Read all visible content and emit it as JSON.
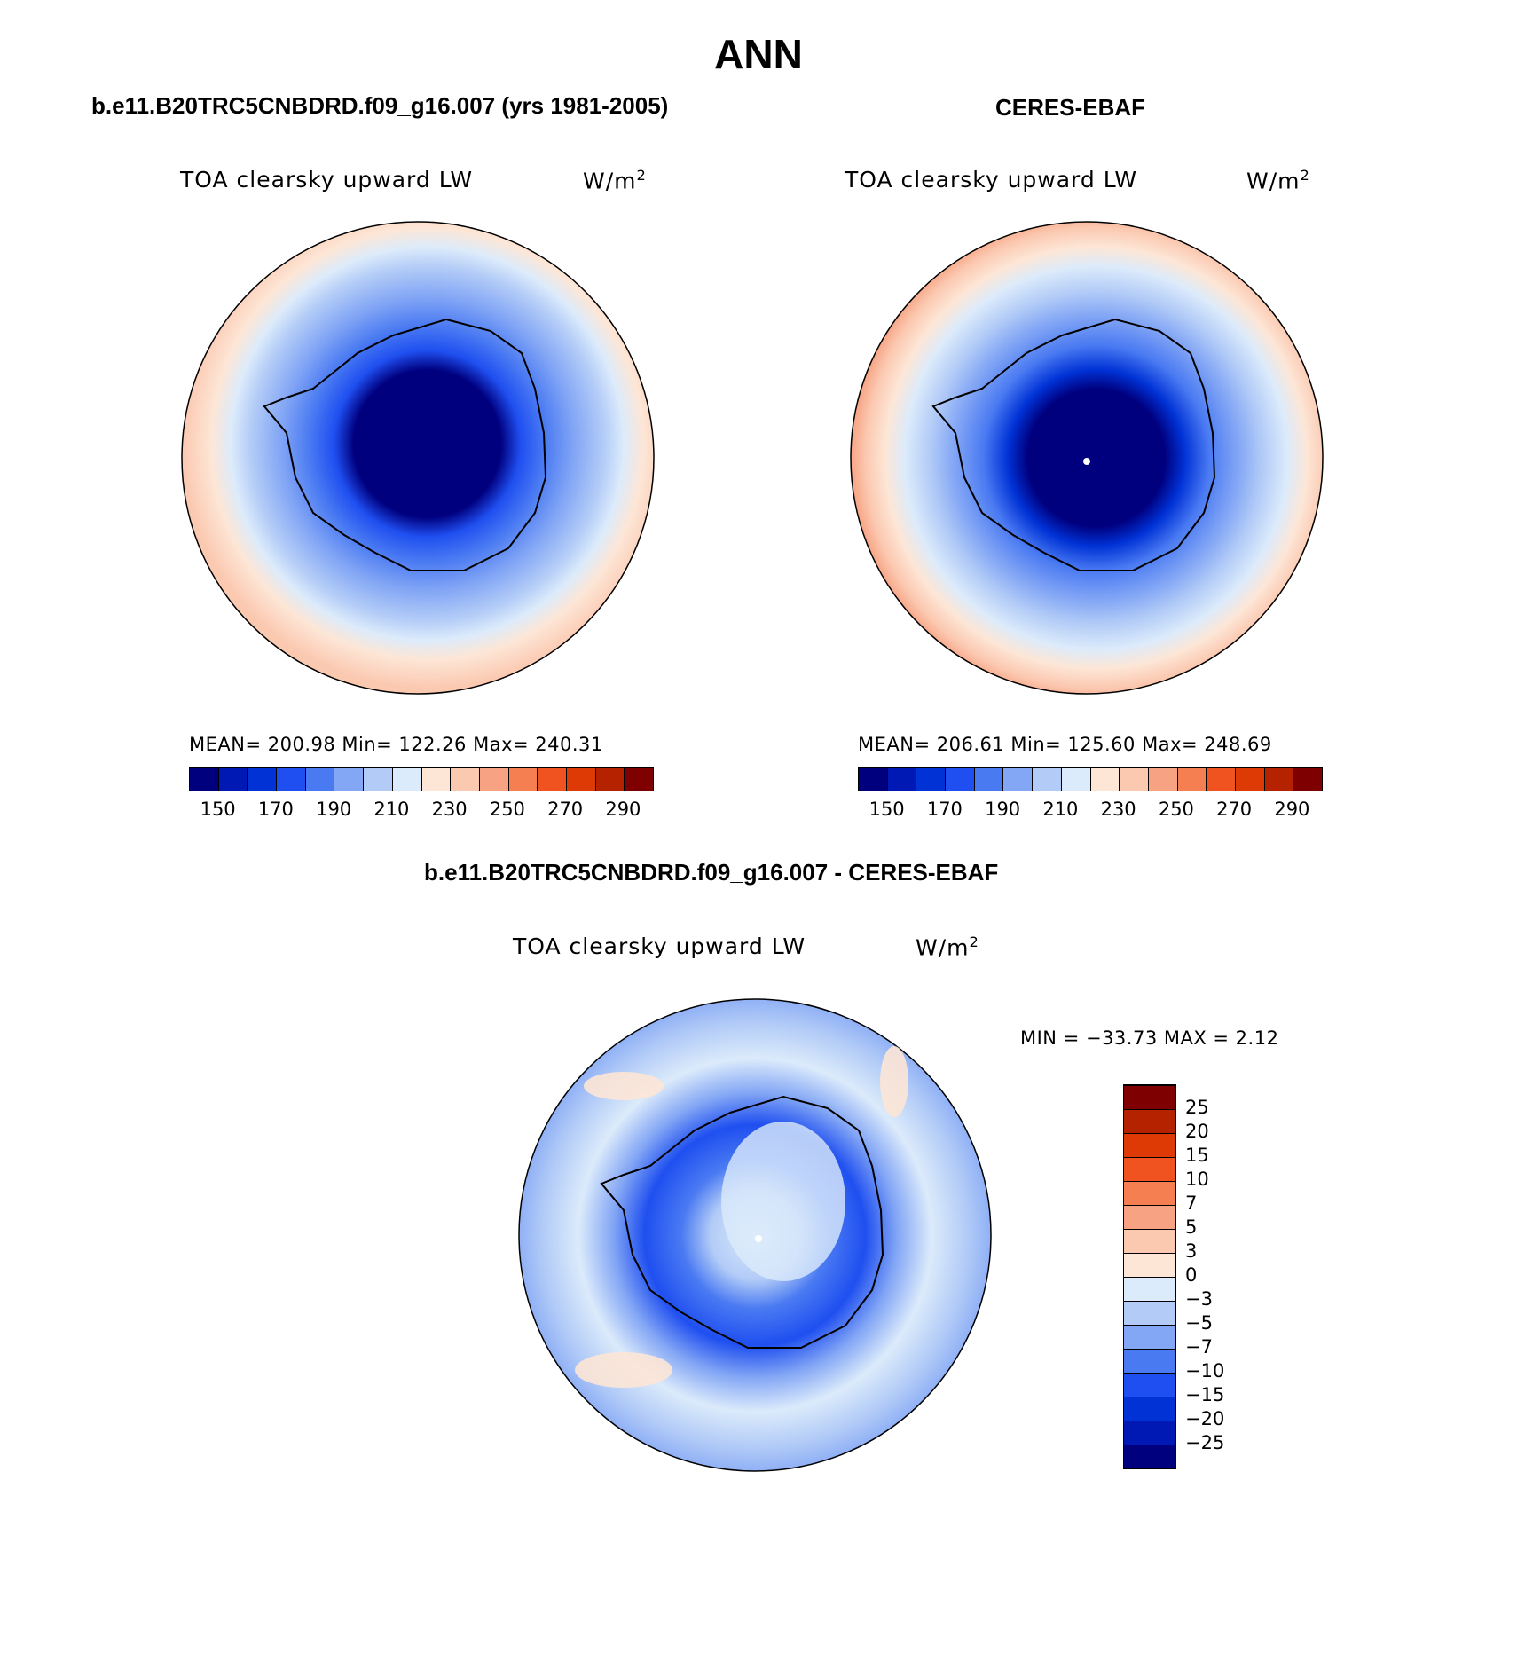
{
  "header": {
    "title": "ANN",
    "left_title": "b.e11.B20TRC5CNBDRD.f09_g16.007 (yrs 1981-2005)",
    "right_title": "CERES-EBAF",
    "diff_title": "b.e11.B20TRC5CNBDRD.f09_g16.007 - CERES-EBAF"
  },
  "panels": {
    "model": {
      "variable": "TOA clearsky upward LW",
      "units_base": "W/m",
      "units_sup": "2",
      "stats": "MEAN= 200.98   Min= 122.26   Max= 240.31"
    },
    "obs": {
      "variable": "TOA clearsky upward LW",
      "units_base": "W/m",
      "units_sup": "2",
      "stats": "MEAN= 206.61   Min= 125.60   Max= 248.69"
    },
    "diff": {
      "variable": "TOA clearsky upward LW",
      "units_base": "W/m",
      "units_sup": "2",
      "stats": "MIN = −33.73 MAX =    2.12"
    }
  },
  "colorbar_main": {
    "colors": [
      "#00007f",
      "#0019b5",
      "#0032d6",
      "#1f4ff0",
      "#4a7af2",
      "#83a6f5",
      "#b3ccf7",
      "#dcebfb",
      "#fde6d6",
      "#fbc8b0",
      "#f7a383",
      "#f67f52",
      "#f0531f",
      "#dd3a06",
      "#b52200",
      "#7f0000"
    ],
    "tick_labels": [
      "150",
      "170",
      "190",
      "210",
      "230",
      "250",
      "270",
      "290"
    ]
  },
  "colorbar_diff": {
    "colors": [
      "#00007f",
      "#0019b5",
      "#0032d6",
      "#1f4ff0",
      "#4a7af2",
      "#83a6f5",
      "#b3ccf7",
      "#dcebfb",
      "#fde6d6",
      "#fbc8b0",
      "#f7a383",
      "#f67f52",
      "#f0531f",
      "#dd3a06",
      "#b52200",
      "#7f0000"
    ],
    "tick_labels": [
      "−25",
      "−20",
      "−15",
      "−10",
      "−7",
      "−5",
      "−3",
      "0",
      "3",
      "5",
      "7",
      "10",
      "15",
      "20",
      "25"
    ]
  }
}
